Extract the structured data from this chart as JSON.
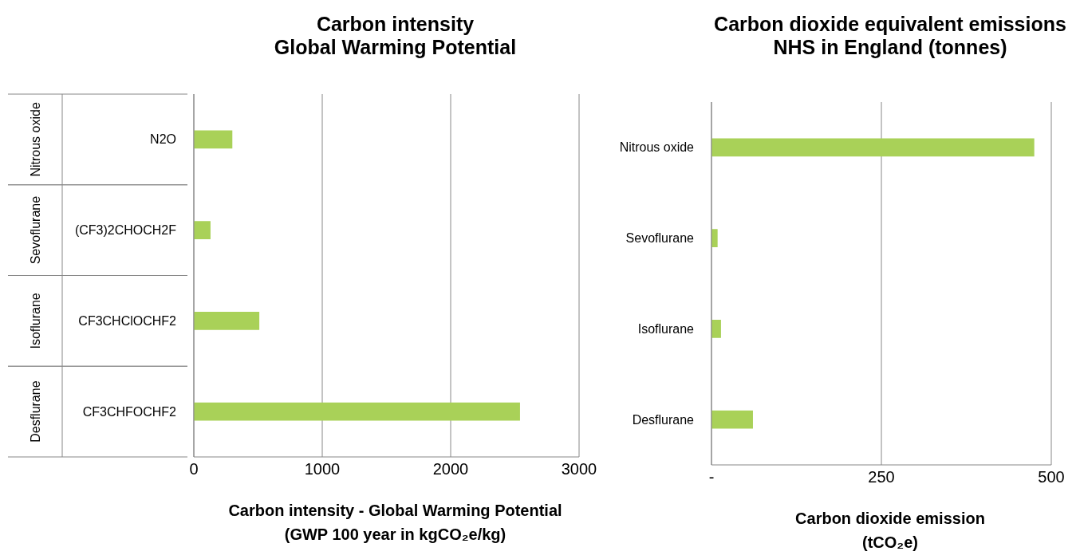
{
  "chart_data": [
    {
      "type": "bar",
      "orientation": "horizontal",
      "title": "Carbon intensity\nGlobal Warming Potential",
      "xlabel": "Carbon intensity - Global Warming Potential\n(GWP 100 year in kgCO₂e/kg)",
      "categories": [
        "N2O",
        "(CF3)2CHOCH2F",
        "CF3CHClOCHF2",
        "CF3CHFOCHF2"
      ],
      "values": [
        300,
        130,
        510,
        2540
      ],
      "color": "#a9d158",
      "xlim": [
        0,
        3000
      ],
      "xticks": [
        0,
        1000,
        2000,
        3000
      ],
      "grid": "x",
      "annotations": [
        "Nitrous oxide",
        "Sevoflurane",
        "Isoflurane",
        "Desflurane"
      ]
    },
    {
      "type": "bar",
      "orientation": "horizontal",
      "title": "Carbon dioxide equivalent emissions\nNHS in England (tonnes)",
      "xlabel": "Carbon dioxide emission\n(tCO₂e)",
      "categories": [
        "Nitrous oxide",
        "Sevoflurane",
        "Isoflurane",
        "Desflurane"
      ],
      "values": [
        475,
        9,
        14,
        61
      ],
      "color": "#a9d158",
      "xlim": [
        0,
        500
      ],
      "xticks": [
        {
          "value": 0,
          "label": "-"
        },
        250,
        500
      ],
      "grid": "x"
    }
  ]
}
